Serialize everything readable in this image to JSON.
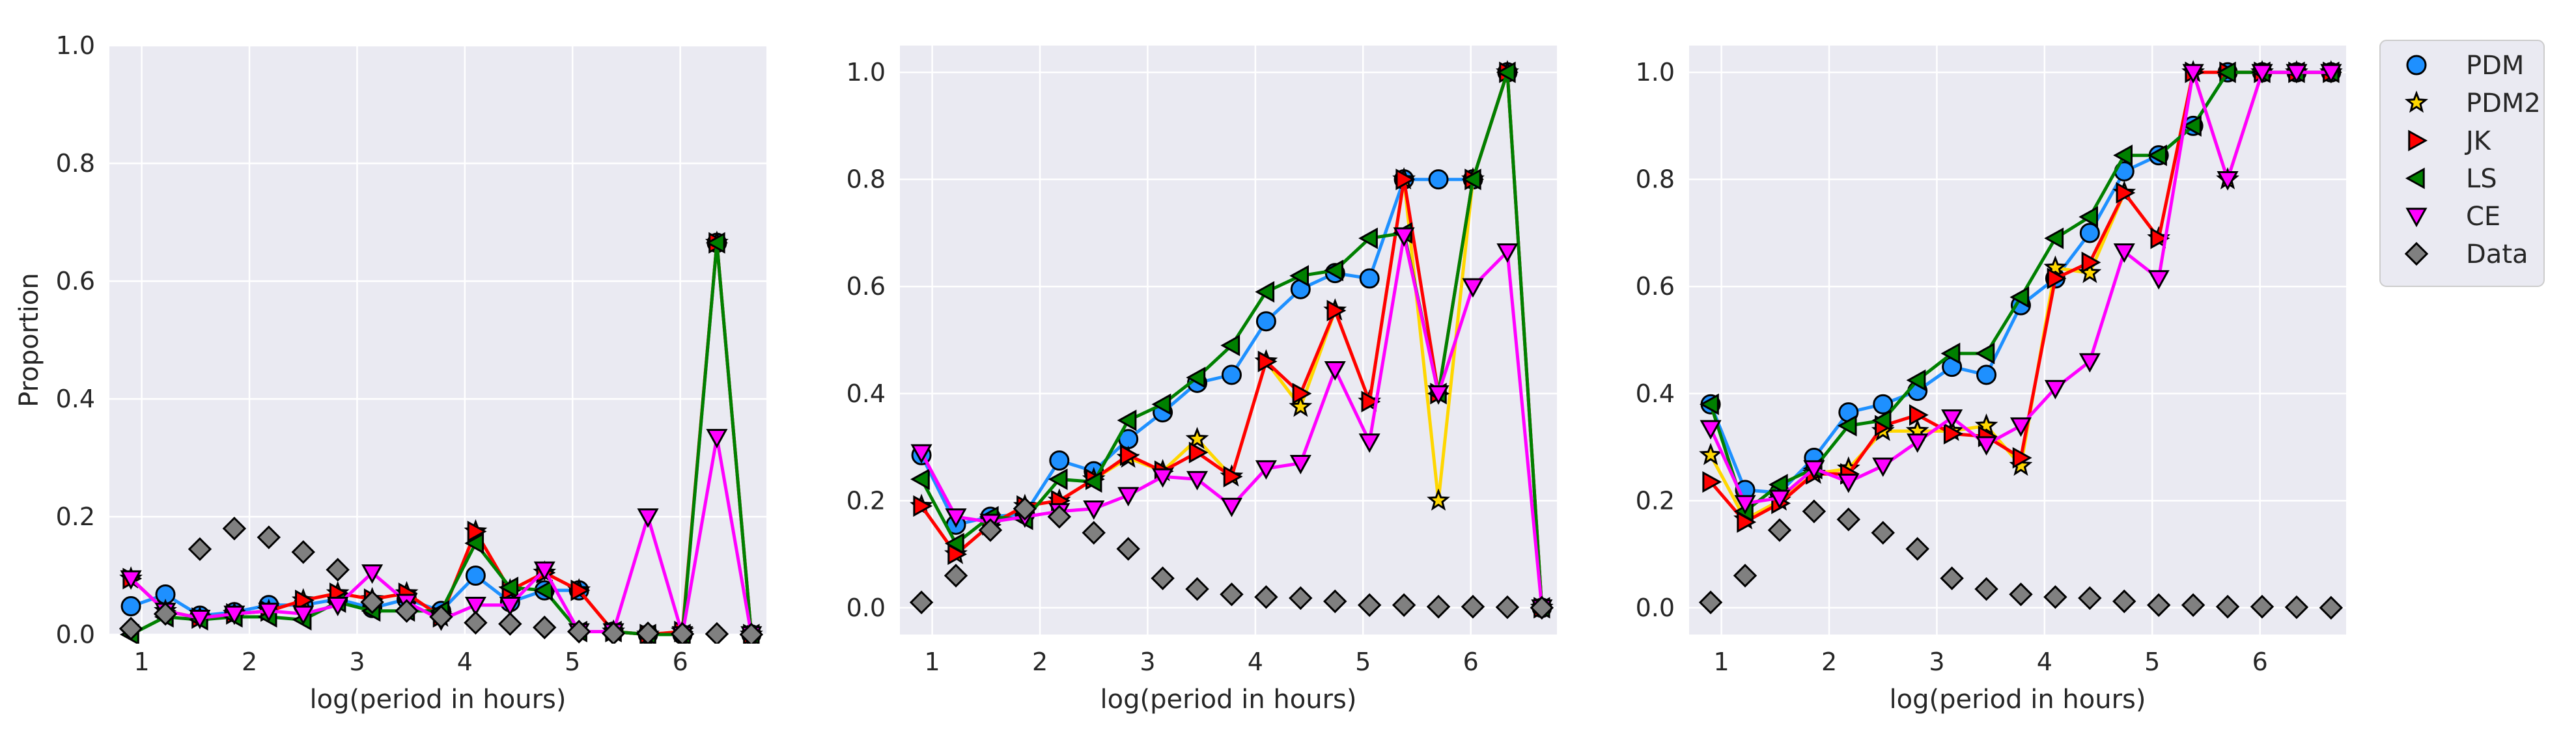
{
  "chart_data": [
    {
      "type": "line",
      "title": "",
      "xlabel": "log(period in hours)",
      "ylabel": "Proportion",
      "xlim": [
        0.7,
        6.8
      ],
      "ylim": [
        0,
        1.0
      ],
      "xticks": [
        1,
        2,
        3,
        4,
        5,
        6
      ],
      "yticks": [
        0.0,
        0.2,
        0.4,
        0.6,
        0.8,
        1.0
      ],
      "x": [
        0.9,
        1.22,
        1.54,
        1.86,
        2.18,
        2.5,
        2.82,
        3.14,
        3.46,
        3.78,
        4.1,
        4.42,
        4.74,
        5.06,
        5.38,
        5.7,
        6.02,
        6.34,
        6.66
      ],
      "series": [
        {
          "name": "PDM",
          "values": [
            0.048,
            0.068,
            0.032,
            0.038,
            0.05,
            0.05,
            0.06,
            0.045,
            0.06,
            0.04,
            0.1,
            0.055,
            0.075,
            0.075,
            0.005,
            0.0,
            0.0,
            0.665,
            0.0
          ]
        },
        {
          "name": "PDM2",
          "values": [
            0.095,
            0.04,
            0.028,
            0.035,
            0.04,
            0.058,
            0.07,
            0.06,
            0.07,
            0.03,
            0.175,
            0.075,
            0.105,
            0.075,
            0.005,
            0.0,
            0.005,
            0.665,
            0.0
          ]
        },
        {
          "name": "JK",
          "values": [
            0.095,
            0.04,
            0.028,
            0.035,
            0.04,
            0.058,
            0.07,
            0.06,
            0.07,
            0.03,
            0.175,
            0.075,
            0.105,
            0.075,
            0.005,
            0.0,
            0.005,
            0.665,
            0.0
          ]
        },
        {
          "name": "LS",
          "values": [
            0.0,
            0.03,
            0.025,
            0.03,
            0.03,
            0.025,
            0.055,
            0.04,
            0.04,
            0.04,
            0.155,
            0.08,
            0.075,
            0.005,
            0.005,
            0.0,
            0.0,
            0.665,
            0.0
          ]
        },
        {
          "name": "CE",
          "values": [
            0.095,
            0.04,
            0.028,
            0.035,
            0.04,
            0.035,
            0.05,
            0.105,
            0.055,
            0.025,
            0.05,
            0.05,
            0.11,
            0.005,
            0.005,
            0.2,
            0.0,
            0.335,
            0.0
          ]
        },
        {
          "name": "Data",
          "values": [
            0.01,
            0.035,
            0.145,
            0.18,
            0.165,
            0.14,
            0.11,
            0.055,
            0.04,
            0.03,
            0.02,
            0.018,
            0.012,
            0.005,
            0.002,
            0.002,
            0.001,
            0.001,
            0.0
          ]
        }
      ]
    },
    {
      "type": "line",
      "title": "",
      "xlabel": "log(period in hours)",
      "ylabel": "",
      "xlim": [
        0.7,
        6.8
      ],
      "ylim": [
        -0.05,
        1.05
      ],
      "xticks": [
        1,
        2,
        3,
        4,
        5,
        6
      ],
      "yticks": [
        0.0,
        0.2,
        0.4,
        0.6,
        0.8,
        1.0
      ],
      "x": [
        0.9,
        1.22,
        1.54,
        1.86,
        2.18,
        2.5,
        2.82,
        3.14,
        3.46,
        3.78,
        4.1,
        4.42,
        4.74,
        5.06,
        5.38,
        5.7,
        6.02,
        6.34,
        6.66
      ],
      "series": [
        {
          "name": "PDM",
          "values": [
            0.285,
            0.155,
            0.17,
            0.175,
            0.275,
            0.255,
            0.315,
            0.365,
            0.42,
            0.435,
            0.535,
            0.595,
            0.625,
            0.615,
            0.8,
            0.8,
            0.8,
            1.0,
            0.0
          ]
        },
        {
          "name": "PDM2",
          "values": [
            0.19,
            0.1,
            0.155,
            0.19,
            0.2,
            0.24,
            0.28,
            0.255,
            0.315,
            0.245,
            0.46,
            0.375,
            0.555,
            0.385,
            0.8,
            0.2,
            0.8,
            1.0,
            0.0
          ]
        },
        {
          "name": "JK",
          "values": [
            0.19,
            0.1,
            0.155,
            0.19,
            0.2,
            0.24,
            0.285,
            0.255,
            0.29,
            0.245,
            0.46,
            0.4,
            0.555,
            0.385,
            0.8,
            0.4,
            0.8,
            1.0,
            0.0
          ]
        },
        {
          "name": "LS",
          "values": [
            0.24,
            0.12,
            0.17,
            0.165,
            0.24,
            0.235,
            0.35,
            0.38,
            0.43,
            0.49,
            0.59,
            0.62,
            0.63,
            0.69,
            0.7,
            0.4,
            0.8,
            1.0,
            0.0
          ]
        },
        {
          "name": "CE",
          "values": [
            0.29,
            0.17,
            0.16,
            0.17,
            0.18,
            0.185,
            0.21,
            0.245,
            0.24,
            0.19,
            0.26,
            0.27,
            0.445,
            0.31,
            0.695,
            0.4,
            0.6,
            0.665,
            0.0
          ]
        },
        {
          "name": "Data",
          "values": [
            0.01,
            0.06,
            0.145,
            0.185,
            0.17,
            0.14,
            0.11,
            0.055,
            0.035,
            0.025,
            0.02,
            0.018,
            0.012,
            0.005,
            0.005,
            0.002,
            0.002,
            0.001,
            0.0
          ]
        }
      ]
    },
    {
      "type": "line",
      "title": "",
      "xlabel": "log(period in hours)",
      "ylabel": "",
      "xlim": [
        0.7,
        6.8
      ],
      "ylim": [
        -0.05,
        1.05
      ],
      "xticks": [
        1,
        2,
        3,
        4,
        5,
        6
      ],
      "yticks": [
        0.0,
        0.2,
        0.4,
        0.6,
        0.8,
        1.0
      ],
      "x": [
        0.9,
        1.22,
        1.54,
        1.86,
        2.18,
        2.5,
        2.82,
        3.14,
        3.46,
        3.78,
        4.1,
        4.42,
        4.74,
        5.06,
        5.38,
        5.7,
        6.02,
        6.34,
        6.66
      ],
      "series": [
        {
          "name": "PDM",
          "values": [
            0.38,
            0.22,
            0.215,
            0.28,
            0.365,
            0.38,
            0.405,
            0.45,
            0.435,
            0.565,
            0.615,
            0.7,
            0.815,
            0.845,
            0.9,
            1.0,
            1.0,
            1.0,
            1.0
          ]
        },
        {
          "name": "PDM2",
          "values": [
            0.285,
            0.165,
            0.2,
            0.25,
            0.26,
            0.33,
            0.33,
            0.33,
            0.34,
            0.265,
            0.635,
            0.625,
            0.775,
            0.69,
            1.0,
            0.8,
            1.0,
            1.0,
            1.0
          ]
        },
        {
          "name": "JK",
          "values": [
            0.235,
            0.16,
            0.195,
            0.25,
            0.25,
            0.34,
            0.36,
            0.325,
            0.32,
            0.28,
            0.615,
            0.645,
            0.775,
            0.69,
            1.0,
            1.0,
            1.0,
            1.0,
            1.0
          ]
        },
        {
          "name": "LS",
          "values": [
            0.38,
            0.18,
            0.23,
            0.26,
            0.34,
            0.35,
            0.425,
            0.475,
            0.475,
            0.58,
            0.69,
            0.73,
            0.845,
            0.845,
            0.9,
            1.0,
            1.0,
            1.0,
            1.0
          ]
        },
        {
          "name": "CE",
          "values": [
            0.335,
            0.195,
            0.205,
            0.26,
            0.235,
            0.265,
            0.31,
            0.355,
            0.305,
            0.34,
            0.41,
            0.46,
            0.665,
            0.615,
            1.0,
            0.8,
            1.0,
            1.0,
            1.0
          ]
        },
        {
          "name": "Data",
          "values": [
            0.01,
            0.06,
            0.145,
            0.18,
            0.165,
            0.14,
            0.11,
            0.055,
            0.035,
            0.025,
            0.02,
            0.018,
            0.012,
            0.005,
            0.005,
            0.002,
            0.002,
            0.001,
            0.0
          ]
        }
      ]
    }
  ],
  "legend": {
    "placement": "outside-right",
    "entries": [
      {
        "name": "PDM",
        "marker": "circle",
        "color": "#1e90ff"
      },
      {
        "name": "PDM2",
        "marker": "star",
        "color": "#ffd700"
      },
      {
        "name": "JK",
        "marker": "triangle-right",
        "color": "#ff0000"
      },
      {
        "name": "LS",
        "marker": "triangle-left",
        "color": "#008000"
      },
      {
        "name": "CE",
        "marker": "triangle-down",
        "color": "#ff00ff"
      },
      {
        "name": "Data",
        "marker": "diamond",
        "color": "#808080"
      }
    ]
  },
  "style": {
    "axes_background": "#eaeaf2",
    "grid_color": "#ffffff",
    "text_color": "#262626",
    "marker_edge": "#000000"
  }
}
